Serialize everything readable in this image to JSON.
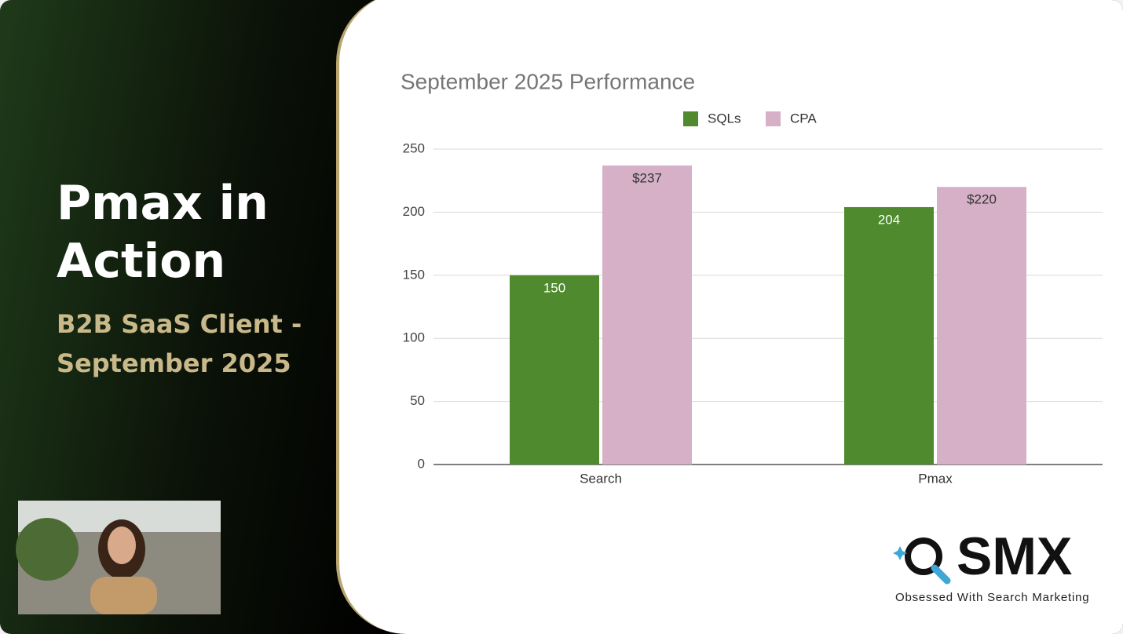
{
  "slide": {
    "title": "Pmax in Action",
    "subtitle": "B2B SaaS Client - September 2025",
    "logo": "SMX",
    "tagline": "Obsessed With Search Marketing"
  },
  "chart_data": {
    "type": "bar",
    "title": "September 2025 Performance",
    "categories": [
      "Search",
      "Pmax"
    ],
    "series": [
      {
        "name": "SQLs",
        "color": "#4f8a2f",
        "values": [
          150,
          204
        ]
      },
      {
        "name": "CPA",
        "color": "#d5b0c6",
        "values": [
          237,
          220
        ],
        "value_labels": [
          "$237",
          "$220"
        ]
      }
    ],
    "ylim": [
      0,
      250
    ],
    "yticks": [
      0,
      50,
      100,
      150,
      200,
      250
    ],
    "grid": true,
    "legend": "top"
  }
}
